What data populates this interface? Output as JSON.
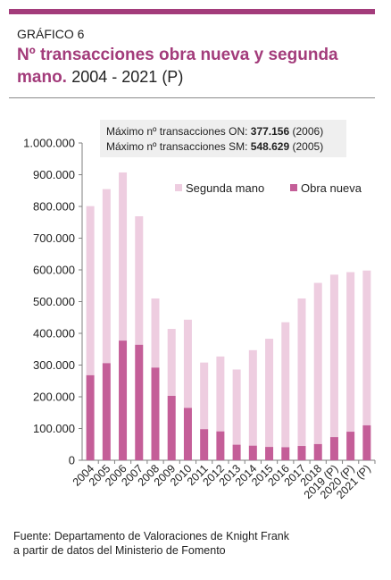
{
  "header": {
    "figure_label": "GRÁFICO 6",
    "title_bold": "Nº transacciones obra nueva y segunda mano.",
    "title_period": "2004 - 2021 (P)"
  },
  "notes": [
    {
      "prefix": "Máximo nº transacciones ON: ",
      "value": "377.156",
      "suffix": " (2006)"
    },
    {
      "prefix": "Máximo nº transacciones SM: ",
      "value": "548.629",
      "suffix": " (2005)"
    }
  ],
  "source": {
    "line1": "Fuente: Departamento de Valoraciones de Knight Frank",
    "line2": "a partir de datos del Ministerio de Fomento"
  },
  "colors": {
    "obra_nueva": "#c45e98",
    "segunda_mano": "#eecde0",
    "accent": "#a33c7b",
    "axis": "#7f7f7f"
  },
  "chart_data": {
    "type": "bar",
    "stacked": true,
    "title": "Nº transacciones obra nueva y segunda mano. 2004 - 2021 (P)",
    "categories": [
      "2004",
      "2005",
      "2006",
      "2007",
      "2008",
      "2009",
      "2010",
      "2011",
      "2012",
      "2013",
      "2014",
      "2015",
      "2016",
      "2017",
      "2018",
      "2019 (P)",
      "2020 (P)",
      "2021 (P)"
    ],
    "series": [
      {
        "name": "Obra nueva",
        "values": [
          268000,
          306000,
          377156,
          364000,
          292000,
          203000,
          165000,
          98000,
          91000,
          49000,
          46000,
          42000,
          41000,
          45000,
          51000,
          73000,
          90000,
          110000
        ]
      },
      {
        "name": "Segunda mano",
        "values": [
          533000,
          548629,
          530000,
          405000,
          218000,
          211000,
          278000,
          210000,
          236000,
          237000,
          301000,
          341000,
          394000,
          465000,
          508000,
          512000,
          503000,
          488000
        ]
      }
    ],
    "ylim": [
      0,
      1000000
    ],
    "yticks": [
      "0",
      "100.000",
      "200.000",
      "300.000",
      "400.000",
      "500.000",
      "600.000",
      "700.000",
      "800.000",
      "900.000",
      "1.000.000"
    ],
    "legend": [
      "Segunda mano",
      "Obra nueva"
    ],
    "legend_position": "top-right",
    "grid": false
  }
}
